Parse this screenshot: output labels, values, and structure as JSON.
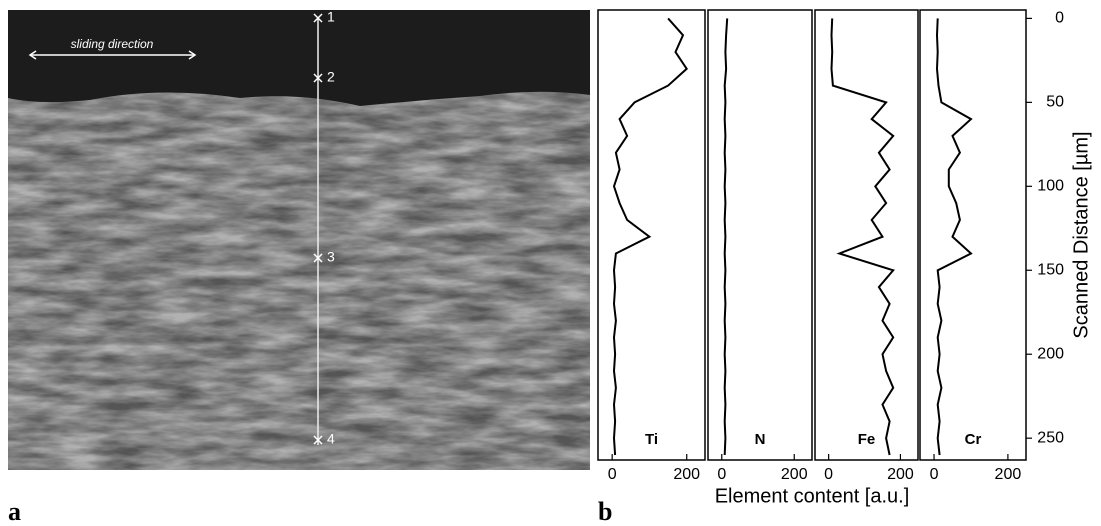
{
  "image": {
    "annotation": "sliding direction",
    "markers": [
      "1",
      "2",
      "3",
      "4"
    ]
  },
  "figure": {
    "panel_a": "a",
    "panel_b": "b",
    "xlabel": "Element content [a.u.]",
    "ylabel": "Scanned Distance [µm]"
  },
  "chart_data": [
    {
      "type": "line",
      "label": "Ti",
      "color": "#000000",
      "distance": [
        0,
        10,
        20,
        30,
        40,
        50,
        60,
        70,
        80,
        90,
        100,
        110,
        120,
        130,
        140,
        150,
        160,
        170,
        180,
        190,
        200,
        210,
        220,
        230,
        240,
        250,
        260
      ],
      "values": [
        150,
        190,
        170,
        200,
        150,
        60,
        20,
        40,
        10,
        20,
        5,
        20,
        40,
        100,
        10,
        5,
        8,
        5,
        10,
        5,
        8,
        5,
        10,
        5,
        8,
        5,
        8
      ],
      "xlim": [
        -38,
        249
      ],
      "xticks": [
        0,
        200
      ],
      "ylim": [
        -5,
        263
      ]
    },
    {
      "type": "line",
      "label": "N",
      "color": "#000000",
      "distance": [
        0,
        10,
        20,
        30,
        40,
        50,
        60,
        70,
        80,
        90,
        100,
        110,
        120,
        130,
        140,
        150,
        160,
        170,
        180,
        190,
        200,
        210,
        220,
        230,
        240,
        250,
        260
      ],
      "values": [
        15,
        12,
        10,
        12,
        8,
        10,
        8,
        10,
        8,
        10,
        8,
        10,
        8,
        10,
        8,
        10,
        8,
        10,
        8,
        10,
        8,
        10,
        8,
        10,
        8,
        10,
        8
      ],
      "xlim": [
        -38,
        249
      ],
      "xticks": [
        0,
        200
      ],
      "ylim": [
        -5,
        263
      ]
    },
    {
      "type": "line",
      "label": "Fe",
      "color": "#000000",
      "distance": [
        0,
        10,
        20,
        30,
        40,
        50,
        60,
        70,
        80,
        90,
        100,
        110,
        120,
        130,
        140,
        150,
        160,
        170,
        180,
        190,
        200,
        210,
        220,
        230,
        240,
        250,
        260
      ],
      "values": [
        10,
        8,
        10,
        8,
        12,
        160,
        120,
        180,
        140,
        170,
        130,
        160,
        120,
        150,
        30,
        180,
        140,
        170,
        150,
        180,
        150,
        160,
        180,
        150,
        170,
        160,
        170
      ],
      "xlim": [
        -38,
        249
      ],
      "xticks": [
        0,
        200
      ],
      "ylim": [
        -5,
        263
      ]
    },
    {
      "type": "line",
      "label": "Cr",
      "color": "#000000",
      "distance": [
        0,
        10,
        20,
        30,
        40,
        50,
        60,
        70,
        80,
        90,
        100,
        110,
        120,
        130,
        140,
        150,
        160,
        170,
        180,
        190,
        200,
        210,
        220,
        230,
        240,
        250,
        260
      ],
      "values": [
        10,
        8,
        10,
        8,
        12,
        20,
        100,
        50,
        70,
        40,
        40,
        60,
        70,
        50,
        100,
        10,
        15,
        10,
        20,
        10,
        15,
        10,
        20,
        10,
        15,
        10,
        15
      ],
      "xlim": [
        -38,
        249
      ],
      "xticks": [
        0,
        200
      ],
      "ylim": [
        -5,
        263
      ],
      "yticks": [
        0,
        50,
        100,
        150,
        200,
        250
      ]
    }
  ]
}
